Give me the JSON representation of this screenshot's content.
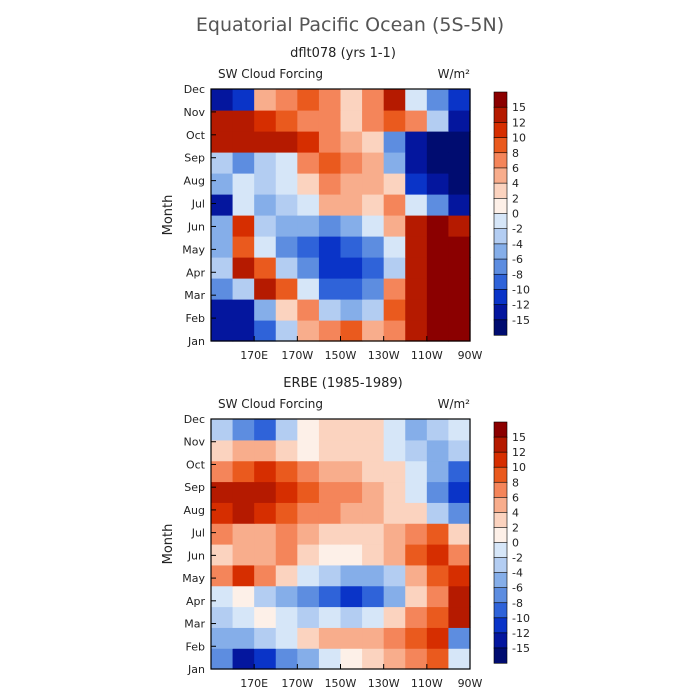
{
  "title": "Equatorial Pacific Ocean (5S-5N)",
  "colorbar": {
    "levels": [
      "15",
      "12",
      "10",
      "8",
      "6",
      "4",
      "2",
      "0",
      "-2",
      "-4",
      "-6",
      "-8",
      "-10",
      "-12",
      "-15"
    ],
    "colors": [
      "#8b0000",
      "#b51a00",
      "#d62e00",
      "#ea5a1e",
      "#f4855a",
      "#f8ad8c",
      "#fbd3bf",
      "#fdf0e8",
      "#d6e6f8",
      "#b3cdf2",
      "#85aee9",
      "#5d8de0",
      "#2f63d9",
      "#0a34c8",
      "#04169e",
      "#000c70"
    ]
  },
  "chart_data": [
    {
      "type": "heatmap",
      "panel_title": "dflt078 (yrs 1-1)",
      "left_label": "SW Cloud Forcing",
      "right_label": "W/m²",
      "ylabel": "Month",
      "x_ticks": [
        "170E",
        "170W",
        "150W",
        "130W",
        "110W",
        "90W"
      ],
      "y_ticks": [
        "Jan",
        "Feb",
        "Mar",
        "Apr",
        "May",
        "Jun",
        "Jul",
        "Aug",
        "Sep",
        "Oct",
        "Nov",
        "Dec"
      ],
      "xlim": [
        "150E",
        "90W"
      ],
      "units": "W/m^2",
      "grid_note": "approximate values, 12 columns (150E-90W, 10° steps) x 12 rows (Jan-Dec)",
      "z": [
        [
          -14,
          -15,
          -10,
          -4,
          4,
          6,
          8,
          4,
          6,
          14,
          16,
          16
        ],
        [
          -14,
          -13,
          -6,
          2,
          6,
          -4,
          -6,
          -4,
          8,
          14,
          16,
          16
        ],
        [
          -8,
          -4,
          12,
          8,
          -2,
          -10,
          -10,
          -8,
          6,
          14,
          16,
          16
        ],
        [
          -4,
          14,
          8,
          -4,
          -8,
          -12,
          -12,
          -10,
          -4,
          14,
          16,
          16
        ],
        [
          -6,
          8,
          -2,
          -8,
          -10,
          -11,
          -10,
          -8,
          -2,
          14,
          16,
          16
        ],
        [
          -6,
          10,
          -4,
          -6,
          -6,
          -8,
          -6,
          -2,
          4,
          12,
          15,
          12
        ],
        [
          -13,
          -2,
          -6,
          -4,
          -2,
          4,
          4,
          2,
          6,
          -2,
          -8,
          -14
        ],
        [
          -6,
          -2,
          -4,
          -2,
          2,
          6,
          4,
          4,
          2,
          -12,
          -15,
          -16
        ],
        [
          -4,
          -8,
          -4,
          -2,
          6,
          8,
          6,
          4,
          -6,
          -14,
          -16,
          -16
        ],
        [
          14,
          14,
          13,
          12,
          10,
          6,
          4,
          2,
          -8,
          -14,
          -16,
          -16
        ],
        [
          12,
          12,
          10,
          8,
          6,
          6,
          2,
          6,
          8,
          6,
          -4,
          -14
        ],
        [
          -14,
          -12,
          4,
          6,
          8,
          6,
          2,
          6,
          12,
          -2,
          -8,
          -12
        ]
      ]
    },
    {
      "type": "heatmap",
      "panel_title": "ERBE (1985-1989)",
      "left_label": "SW Cloud Forcing",
      "right_label": "W/m²",
      "ylabel": "Month",
      "x_ticks": [
        "170E",
        "170W",
        "150W",
        "130W",
        "110W",
        "90W"
      ],
      "y_ticks": [
        "Jan",
        "Feb",
        "Mar",
        "Apr",
        "May",
        "Jun",
        "Jul",
        "Aug",
        "Sep",
        "Oct",
        "Nov",
        "Dec"
      ],
      "xlim": [
        "150E",
        "90W"
      ],
      "units": "W/m^2",
      "grid_note": "approximate values, 12 columns (150E-90W, 10° steps) x 12 rows (Jan-Dec)",
      "z": [
        [
          -8,
          -14,
          -12,
          -8,
          -6,
          -2,
          0,
          2,
          4,
          6,
          8,
          -2
        ],
        [
          -6,
          -6,
          -4,
          -2,
          2,
          4,
          4,
          4,
          6,
          8,
          10,
          -8
        ],
        [
          -4,
          -2,
          0,
          -2,
          -4,
          -2,
          -4,
          -2,
          2,
          6,
          8,
          12
        ],
        [
          -2,
          0,
          -4,
          -6,
          -8,
          -10,
          -12,
          -10,
          -6,
          2,
          6,
          12
        ],
        [
          6,
          10,
          6,
          2,
          -2,
          -4,
          -6,
          -6,
          -4,
          4,
          8,
          10
        ],
        [
          2,
          4,
          4,
          6,
          2,
          0,
          0,
          2,
          4,
          8,
          10,
          6
        ],
        [
          6,
          4,
          4,
          6,
          4,
          2,
          2,
          2,
          4,
          6,
          8,
          2
        ],
        [
          10,
          12,
          10,
          8,
          6,
          6,
          4,
          4,
          2,
          2,
          -4,
          -8
        ],
        [
          12,
          13,
          12,
          10,
          8,
          6,
          6,
          4,
          2,
          -2,
          -8,
          -12
        ],
        [
          6,
          8,
          10,
          8,
          6,
          4,
          4,
          2,
          2,
          -2,
          -6,
          -10
        ],
        [
          2,
          4,
          4,
          2,
          0,
          2,
          2,
          2,
          -2,
          -4,
          -6,
          -4
        ],
        [
          -4,
          -8,
          -10,
          -4,
          0,
          2,
          2,
          2,
          -2,
          -6,
          -4,
          -2
        ]
      ]
    }
  ]
}
